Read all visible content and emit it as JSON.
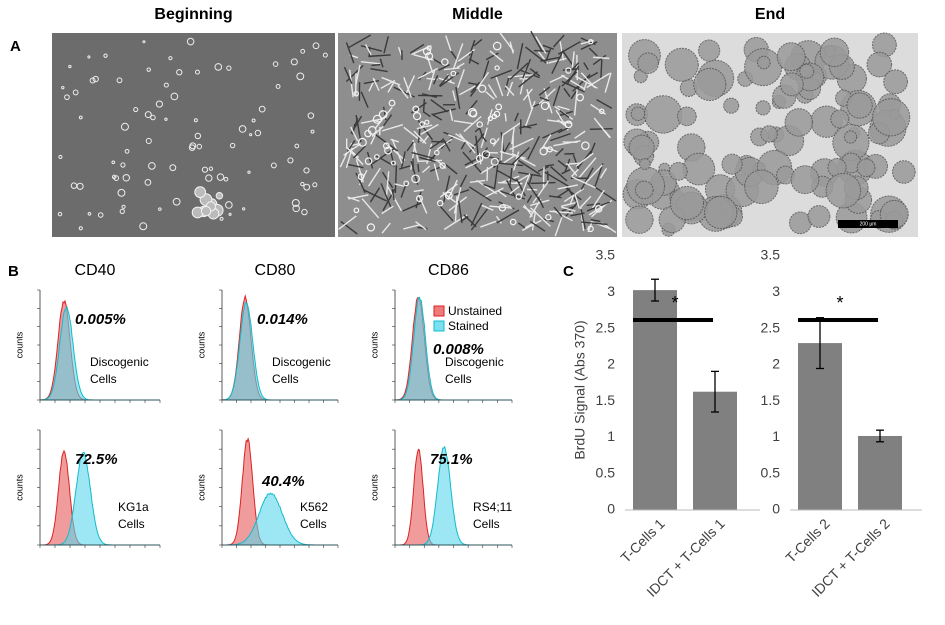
{
  "figure": {
    "panel_a": {
      "label": "A",
      "images": [
        {
          "title": "Beginning"
        },
        {
          "title": "Middle"
        },
        {
          "title": "End",
          "scale_bar": "200 µm"
        }
      ]
    },
    "panel_b": {
      "label": "B",
      "columns": [
        "CD40",
        "CD80",
        "CD86"
      ],
      "ylabel": "counts",
      "legend": [
        "Unstained",
        "Stained"
      ],
      "plots": [
        {
          "percent": "0.005%",
          "label": [
            "Discogenic",
            "Cells"
          ]
        },
        {
          "percent": "0.014%",
          "label": [
            "Discogenic",
            "Cells"
          ]
        },
        {
          "percent": "0.008%",
          "label": [
            "Discogenic",
            "Cells"
          ]
        },
        {
          "percent": "72.5%",
          "label": [
            "KG1a",
            "Cells"
          ]
        },
        {
          "percent": "40.4%",
          "label": [
            "K562",
            "Cells"
          ]
        },
        {
          "percent": "75.1%",
          "label": [
            "RS4;11",
            "Cells"
          ]
        }
      ]
    },
    "panel_c": {
      "label": "C"
    }
  },
  "chart_data": [
    {
      "type": "bar",
      "ylabel": "BrdU Signal (Abs 370)",
      "annotation": "*",
      "color": "#808080",
      "categories": [
        "T-Cells 1",
        "IDCT + T-Cells 1"
      ],
      "values": [
        3.03,
        1.63
      ],
      "errors": [
        0.15,
        0.28
      ],
      "ylim": [
        0,
        3.5
      ],
      "yticks": [
        0,
        0.5,
        1,
        1.5,
        2,
        2.5,
        3,
        3.5
      ]
    },
    {
      "type": "bar",
      "annotation": "*",
      "color": "#808080",
      "categories": [
        "T-Cells 2",
        "IDCT + T-Cells 2"
      ],
      "values": [
        2.3,
        1.02
      ],
      "errors": [
        0.35,
        0.08
      ],
      "ylim": [
        0,
        3.5
      ],
      "yticks": [
        0,
        0.5,
        1,
        1.5,
        2,
        2.5,
        3,
        3.5
      ]
    }
  ]
}
